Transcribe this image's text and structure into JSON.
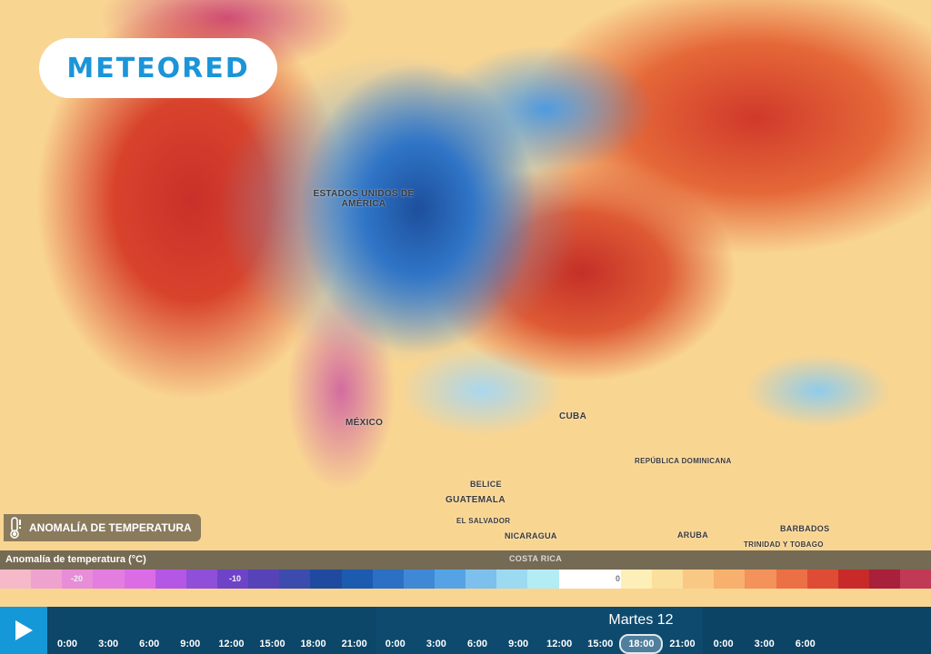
{
  "brand": {
    "logo": "METEORED",
    "color": "#1b95d8"
  },
  "map": {
    "labels": [
      "ESTADOS UNIDOS DE AMÉRICA",
      "MÉXICO",
      "CUBA",
      "REPÚBLICA DOMINICANA",
      "BELICE",
      "GUATEMALA",
      "EL SALVADOR",
      "NICARAGUA",
      "ARUBA",
      "BARBADOS",
      "TRINIDAD Y TOBAGO",
      "COSTA RICA"
    ]
  },
  "layer": {
    "icon": "thermometer-icon",
    "label": "ANOMALÍA DE TEMPERATURA"
  },
  "legend": {
    "title": "Anomalía de temperatura (°C)",
    "ticks": [
      "-20",
      "-10",
      "0"
    ],
    "colors": [
      "#f5b9c9",
      "#eea3cf",
      "#e88dd8",
      "#e37de0",
      "#dc6ce6",
      "#b457e4",
      "#8f4fd8",
      "#6e43c8",
      "#5643b7",
      "#3b4cae",
      "#1f4aa0",
      "#1d5bb0",
      "#2b70c4",
      "#3f88d6",
      "#55a3e4",
      "#7dc0ee",
      "#9cdaf2",
      "#b3ecf4",
      "#ffffff",
      "#ffffff",
      "#fdefb8",
      "#fbdf9c",
      "#f9c885",
      "#f7b06d",
      "#f3925a",
      "#ec7046",
      "#df4c35",
      "#c82a2a",
      "#a8203a",
      "#c03a55"
    ]
  },
  "timeline": {
    "play_icon": "play-icon",
    "current_day": "Martes 12",
    "selected_hour": "18:00",
    "days": [
      [
        "0:00",
        "3:00",
        "6:00",
        "9:00",
        "12:00",
        "15:00",
        "18:00",
        "21:00"
      ],
      [
        "0:00",
        "3:00",
        "6:00",
        "9:00",
        "12:00",
        "15:00",
        "18:00",
        "21:00"
      ],
      [
        "0:00",
        "3:00",
        "6:00"
      ]
    ]
  }
}
